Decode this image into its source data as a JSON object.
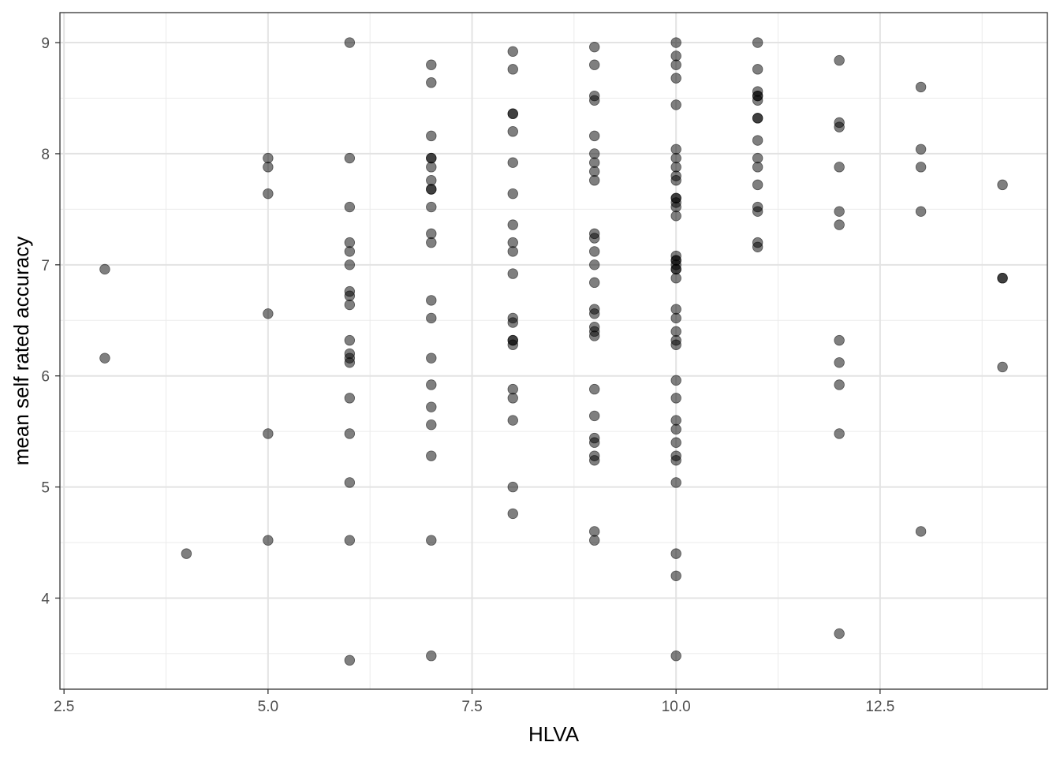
{
  "chart_data": {
    "type": "scatter",
    "xlabel": "HLVA",
    "ylabel": "mean self rated accuracy",
    "xlim": [
      2.45,
      14.55
    ],
    "ylim": [
      3.18,
      9.27
    ],
    "x_ticks": [
      2.5,
      5.0,
      7.5,
      10.0,
      12.5
    ],
    "x_tick_labels": [
      "2.5",
      "5.0",
      "7.5",
      "10.0",
      "12.5"
    ],
    "y_ticks": [
      4,
      5,
      6,
      7,
      8,
      9
    ],
    "y_tick_labels": [
      "4",
      "5",
      "6",
      "7",
      "8",
      "9"
    ],
    "grid": true,
    "point_color": "#000000",
    "point_opacity": 0.5,
    "points": [
      {
        "x": 3,
        "y": 6.96
      },
      {
        "x": 3,
        "y": 6.16
      },
      {
        "x": 4,
        "y": 4.4
      },
      {
        "x": 5,
        "y": 7.96
      },
      {
        "x": 5,
        "y": 7.88
      },
      {
        "x": 5,
        "y": 7.64
      },
      {
        "x": 5,
        "y": 6.56
      },
      {
        "x": 5,
        "y": 5.48
      },
      {
        "x": 5,
        "y": 4.52
      },
      {
        "x": 6,
        "y": 9.0
      },
      {
        "x": 6,
        "y": 7.96
      },
      {
        "x": 6,
        "y": 7.52
      },
      {
        "x": 6,
        "y": 7.2
      },
      {
        "x": 6,
        "y": 7.12
      },
      {
        "x": 6,
        "y": 7.0
      },
      {
        "x": 6,
        "y": 6.76
      },
      {
        "x": 6,
        "y": 6.72
      },
      {
        "x": 6,
        "y": 6.64
      },
      {
        "x": 6,
        "y": 6.32
      },
      {
        "x": 6,
        "y": 6.2
      },
      {
        "x": 6,
        "y": 6.16
      },
      {
        "x": 6,
        "y": 6.12
      },
      {
        "x": 6,
        "y": 5.8
      },
      {
        "x": 6,
        "y": 5.48
      },
      {
        "x": 6,
        "y": 5.04
      },
      {
        "x": 6,
        "y": 4.52
      },
      {
        "x": 6,
        "y": 3.44
      },
      {
        "x": 7,
        "y": 8.8
      },
      {
        "x": 7,
        "y": 8.64
      },
      {
        "x": 7,
        "y": 8.16
      },
      {
        "x": 7,
        "y": 7.96
      },
      {
        "x": 7,
        "y": 7.96
      },
      {
        "x": 7,
        "y": 7.88
      },
      {
        "x": 7,
        "y": 7.76
      },
      {
        "x": 7,
        "y": 7.68
      },
      {
        "x": 7,
        "y": 7.68
      },
      {
        "x": 7,
        "y": 7.52
      },
      {
        "x": 7,
        "y": 7.28
      },
      {
        "x": 7,
        "y": 7.2
      },
      {
        "x": 7,
        "y": 6.68
      },
      {
        "x": 7,
        "y": 6.52
      },
      {
        "x": 7,
        "y": 6.16
      },
      {
        "x": 7,
        "y": 5.92
      },
      {
        "x": 7,
        "y": 5.72
      },
      {
        "x": 7,
        "y": 5.56
      },
      {
        "x": 7,
        "y": 5.28
      },
      {
        "x": 7,
        "y": 4.52
      },
      {
        "x": 7,
        "y": 3.48
      },
      {
        "x": 8,
        "y": 8.92
      },
      {
        "x": 8,
        "y": 8.76
      },
      {
        "x": 8,
        "y": 8.36
      },
      {
        "x": 8,
        "y": 8.36
      },
      {
        "x": 8,
        "y": 8.2
      },
      {
        "x": 8,
        "y": 7.92
      },
      {
        "x": 8,
        "y": 7.64
      },
      {
        "x": 8,
        "y": 7.36
      },
      {
        "x": 8,
        "y": 7.2
      },
      {
        "x": 8,
        "y": 7.12
      },
      {
        "x": 8,
        "y": 6.92
      },
      {
        "x": 8,
        "y": 6.52
      },
      {
        "x": 8,
        "y": 6.48
      },
      {
        "x": 8,
        "y": 6.32
      },
      {
        "x": 8,
        "y": 6.32
      },
      {
        "x": 8,
        "y": 6.28
      },
      {
        "x": 8,
        "y": 5.88
      },
      {
        "x": 8,
        "y": 5.8
      },
      {
        "x": 8,
        "y": 5.6
      },
      {
        "x": 8,
        "y": 5.0
      },
      {
        "x": 8,
        "y": 4.76
      },
      {
        "x": 9,
        "y": 8.96
      },
      {
        "x": 9,
        "y": 8.8
      },
      {
        "x": 9,
        "y": 8.52
      },
      {
        "x": 9,
        "y": 8.48
      },
      {
        "x": 9,
        "y": 8.16
      },
      {
        "x": 9,
        "y": 8.0
      },
      {
        "x": 9,
        "y": 7.92
      },
      {
        "x": 9,
        "y": 7.84
      },
      {
        "x": 9,
        "y": 7.76
      },
      {
        "x": 9,
        "y": 7.28
      },
      {
        "x": 9,
        "y": 7.24
      },
      {
        "x": 9,
        "y": 7.12
      },
      {
        "x": 9,
        "y": 7.0
      },
      {
        "x": 9,
        "y": 6.84
      },
      {
        "x": 9,
        "y": 6.6
      },
      {
        "x": 9,
        "y": 6.56
      },
      {
        "x": 9,
        "y": 6.44
      },
      {
        "x": 9,
        "y": 6.4
      },
      {
        "x": 9,
        "y": 6.36
      },
      {
        "x": 9,
        "y": 5.88
      },
      {
        "x": 9,
        "y": 5.64
      },
      {
        "x": 9,
        "y": 5.44
      },
      {
        "x": 9,
        "y": 5.4
      },
      {
        "x": 9,
        "y": 5.28
      },
      {
        "x": 9,
        "y": 5.24
      },
      {
        "x": 9,
        "y": 4.6
      },
      {
        "x": 9,
        "y": 4.52
      },
      {
        "x": 10,
        "y": 9.0
      },
      {
        "x": 10,
        "y": 8.88
      },
      {
        "x": 10,
        "y": 8.8
      },
      {
        "x": 10,
        "y": 8.68
      },
      {
        "x": 10,
        "y": 8.44
      },
      {
        "x": 10,
        "y": 8.04
      },
      {
        "x": 10,
        "y": 7.96
      },
      {
        "x": 10,
        "y": 7.88
      },
      {
        "x": 10,
        "y": 7.8
      },
      {
        "x": 10,
        "y": 7.76
      },
      {
        "x": 10,
        "y": 7.6
      },
      {
        "x": 10,
        "y": 7.6
      },
      {
        "x": 10,
        "y": 7.56
      },
      {
        "x": 10,
        "y": 7.52
      },
      {
        "x": 10,
        "y": 7.44
      },
      {
        "x": 10,
        "y": 7.08
      },
      {
        "x": 10,
        "y": 7.04
      },
      {
        "x": 10,
        "y": 7.04
      },
      {
        "x": 10,
        "y": 7.0
      },
      {
        "x": 10,
        "y": 6.96
      },
      {
        "x": 10,
        "y": 6.96
      },
      {
        "x": 10,
        "y": 6.88
      },
      {
        "x": 10,
        "y": 6.6
      },
      {
        "x": 10,
        "y": 6.52
      },
      {
        "x": 10,
        "y": 6.4
      },
      {
        "x": 10,
        "y": 6.32
      },
      {
        "x": 10,
        "y": 6.28
      },
      {
        "x": 10,
        "y": 5.96
      },
      {
        "x": 10,
        "y": 5.8
      },
      {
        "x": 10,
        "y": 5.6
      },
      {
        "x": 10,
        "y": 5.52
      },
      {
        "x": 10,
        "y": 5.4
      },
      {
        "x": 10,
        "y": 5.28
      },
      {
        "x": 10,
        "y": 5.24
      },
      {
        "x": 10,
        "y": 5.04
      },
      {
        "x": 10,
        "y": 4.4
      },
      {
        "x": 10,
        "y": 4.2
      },
      {
        "x": 10,
        "y": 3.48
      },
      {
        "x": 11,
        "y": 9.0
      },
      {
        "x": 11,
        "y": 8.76
      },
      {
        "x": 11,
        "y": 8.56
      },
      {
        "x": 11,
        "y": 8.52
      },
      {
        "x": 11,
        "y": 8.52
      },
      {
        "x": 11,
        "y": 8.48
      },
      {
        "x": 11,
        "y": 8.32
      },
      {
        "x": 11,
        "y": 8.32
      },
      {
        "x": 11,
        "y": 8.12
      },
      {
        "x": 11,
        "y": 7.96
      },
      {
        "x": 11,
        "y": 7.88
      },
      {
        "x": 11,
        "y": 7.72
      },
      {
        "x": 11,
        "y": 7.52
      },
      {
        "x": 11,
        "y": 7.48
      },
      {
        "x": 11,
        "y": 7.2
      },
      {
        "x": 11,
        "y": 7.16
      },
      {
        "x": 12,
        "y": 8.84
      },
      {
        "x": 12,
        "y": 8.28
      },
      {
        "x": 12,
        "y": 8.24
      },
      {
        "x": 12,
        "y": 7.88
      },
      {
        "x": 12,
        "y": 7.48
      },
      {
        "x": 12,
        "y": 7.36
      },
      {
        "x": 12,
        "y": 6.32
      },
      {
        "x": 12,
        "y": 6.12
      },
      {
        "x": 12,
        "y": 5.92
      },
      {
        "x": 12,
        "y": 5.48
      },
      {
        "x": 12,
        "y": 3.68
      },
      {
        "x": 13,
        "y": 8.6
      },
      {
        "x": 13,
        "y": 8.04
      },
      {
        "x": 13,
        "y": 7.88
      },
      {
        "x": 13,
        "y": 7.48
      },
      {
        "x": 13,
        "y": 4.6
      },
      {
        "x": 14,
        "y": 7.72
      },
      {
        "x": 14,
        "y": 6.88
      },
      {
        "x": 14,
        "y": 6.88
      },
      {
        "x": 14,
        "y": 6.08
      }
    ]
  }
}
